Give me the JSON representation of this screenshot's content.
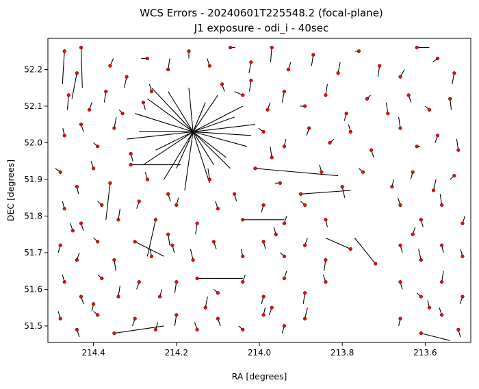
{
  "chart_data": {
    "type": "scatter",
    "title": "WCS Errors - 20240601T225548.2 (focal-plane)",
    "subtitle": "J1 exposure - odi_i - 40sec",
    "xlabel": "RA [degrees]",
    "ylabel": "DEC [degrees]",
    "xlim": [
      214.51,
      213.49
    ],
    "ylim": [
      51.455,
      52.285
    ],
    "x_inverted": true,
    "xticks": [
      214.4,
      214.2,
      214.0,
      213.8,
      213.6
    ],
    "xtick_labels": [
      "214.4",
      "214.2",
      "214.0",
      "213.8",
      "213.6"
    ],
    "yticks": [
      51.5,
      51.6,
      51.7,
      51.8,
      51.9,
      52.0,
      52.1,
      52.2
    ],
    "ytick_labels": [
      "51.5",
      "51.6",
      "51.7",
      "51.8",
      "51.9",
      "52.0",
      "52.1",
      "52.2"
    ],
    "grid": false,
    "marker_color": "#ff0000",
    "marker_edge_color": "#000000",
    "vector_color": "#000000",
    "burst_center": {
      "ra": 214.16,
      "dec": 52.03
    },
    "points": [
      {
        "ra": 214.47,
        "dec": 52.25,
        "dra": 0.005,
        "ddec": -0.09
      },
      {
        "ra": 214.44,
        "dec": 52.19,
        "dra": 0.012,
        "ddec": -0.07
      },
      {
        "ra": 214.43,
        "dec": 52.26,
        "dra": -0.003,
        "ddec": -0.11
      },
      {
        "ra": 214.36,
        "dec": 52.21,
        "dra": -0.008,
        "ddec": 0.02
      },
      {
        "ra": 214.32,
        "dec": 52.18,
        "dra": 0.006,
        "ddec": -0.03
      },
      {
        "ra": 214.27,
        "dec": 52.23,
        "dra": 0.015,
        "ddec": 0.0
      },
      {
        "ra": 214.22,
        "dec": 52.2,
        "dra": -0.004,
        "ddec": 0.03
      },
      {
        "ra": 214.17,
        "dec": 52.25,
        "dra": 0.0,
        "ddec": -0.02
      },
      {
        "ra": 214.12,
        "dec": 52.21,
        "dra": 0.006,
        "ddec": 0.02
      },
      {
        "ra": 214.07,
        "dec": 52.26,
        "dra": -0.012,
        "ddec": 0.0
      },
      {
        "ra": 214.02,
        "dec": 52.22,
        "dra": 0.005,
        "ddec": -0.03
      },
      {
        "ra": 213.97,
        "dec": 52.26,
        "dra": 0.003,
        "ddec": -0.04
      },
      {
        "ra": 213.93,
        "dec": 52.2,
        "dra": -0.006,
        "ddec": 0.02
      },
      {
        "ra": 213.87,
        "dec": 52.24,
        "dra": 0.004,
        "ddec": -0.03
      },
      {
        "ra": 213.81,
        "dec": 52.19,
        "dra": -0.005,
        "ddec": 0.03
      },
      {
        "ra": 213.76,
        "dec": 52.25,
        "dra": 0.01,
        "ddec": 0.0
      },
      {
        "ra": 213.71,
        "dec": 52.21,
        "dra": 0.004,
        "ddec": -0.03
      },
      {
        "ra": 213.66,
        "dec": 52.18,
        "dra": -0.01,
        "ddec": 0.02
      },
      {
        "ra": 213.62,
        "dec": 52.26,
        "dra": -0.03,
        "ddec": 0.0
      },
      {
        "ra": 213.57,
        "dec": 52.23,
        "dra": 0.012,
        "ddec": -0.01
      },
      {
        "ra": 213.53,
        "dec": 52.19,
        "dra": 0.005,
        "ddec": -0.03
      },
      {
        "ra": 214.46,
        "dec": 52.13,
        "dra": 0.003,
        "ddec": -0.04
      },
      {
        "ra": 214.41,
        "dec": 52.09,
        "dra": -0.006,
        "ddec": 0.02
      },
      {
        "ra": 214.37,
        "dec": 52.14,
        "dra": 0.004,
        "ddec": -0.03
      },
      {
        "ra": 214.33,
        "dec": 52.08,
        "dra": 0.008,
        "ddec": 0.01
      },
      {
        "ra": 214.28,
        "dec": 52.11,
        "dra": -0.005,
        "ddec": -0.02
      },
      {
        "ra": 214.04,
        "dec": 52.13,
        "dra": 0.02,
        "ddec": 0.01
      },
      {
        "ra": 213.98,
        "dec": 52.09,
        "dra": -0.006,
        "ddec": 0.02
      },
      {
        "ra": 213.94,
        "dec": 52.14,
        "dra": 0.005,
        "ddec": -0.03
      },
      {
        "ra": 213.89,
        "dec": 52.1,
        "dra": 0.012,
        "ddec": 0.0
      },
      {
        "ra": 213.84,
        "dec": 52.13,
        "dra": -0.004,
        "ddec": 0.03
      },
      {
        "ra": 213.79,
        "dec": 52.08,
        "dra": 0.005,
        "ddec": -0.02
      },
      {
        "ra": 213.74,
        "dec": 52.12,
        "dra": -0.008,
        "ddec": 0.01
      },
      {
        "ra": 213.69,
        "dec": 52.08,
        "dra": 0.004,
        "ddec": 0.03
      },
      {
        "ra": 213.64,
        "dec": 52.13,
        "dra": -0.006,
        "ddec": -0.02
      },
      {
        "ra": 213.59,
        "dec": 52.09,
        "dra": 0.01,
        "ddec": 0.01
      },
      {
        "ra": 213.54,
        "dec": 52.12,
        "dra": -0.003,
        "ddec": -0.03
      },
      {
        "ra": 214.47,
        "dec": 52.02,
        "dra": 0.004,
        "ddec": 0.02
      },
      {
        "ra": 214.43,
        "dec": 52.05,
        "dra": -0.006,
        "ddec": -0.02
      },
      {
        "ra": 214.39,
        "dec": 51.99,
        "dra": 0.01,
        "ddec": 0.01
      },
      {
        "ra": 214.35,
        "dec": 52.04,
        "dra": -0.005,
        "ddec": 0.03
      },
      {
        "ra": 213.99,
        "dec": 52.03,
        "dra": 0.012,
        "ddec": 0.01
      },
      {
        "ra": 213.94,
        "dec": 51.99,
        "dra": -0.004,
        "ddec": 0.02
      },
      {
        "ra": 213.88,
        "dec": 52.04,
        "dra": 0.006,
        "ddec": -0.02
      },
      {
        "ra": 213.83,
        "dec": 52.0,
        "dra": -0.01,
        "ddec": 0.01
      },
      {
        "ra": 213.78,
        "dec": 52.03,
        "dra": 0.005,
        "ddec": 0.02
      },
      {
        "ra": 213.73,
        "dec": 51.98,
        "dra": -0.006,
        "ddec": -0.02
      },
      {
        "ra": 213.66,
        "dec": 52.04,
        "dra": 0.004,
        "ddec": 0.03
      },
      {
        "ra": 213.62,
        "dec": 51.99,
        "dra": -0.008,
        "ddec": 0.0
      },
      {
        "ra": 213.57,
        "dec": 52.02,
        "dra": 0.006,
        "ddec": -0.02
      },
      {
        "ra": 213.52,
        "dec": 51.98,
        "dra": 0.004,
        "ddec": 0.03
      },
      {
        "ra": 214.48,
        "dec": 51.92,
        "dra": 0.012,
        "ddec": 0.01
      },
      {
        "ra": 214.44,
        "dec": 51.88,
        "dra": -0.004,
        "ddec": -0.02
      },
      {
        "ra": 214.4,
        "dec": 51.93,
        "dra": 0.006,
        "ddec": 0.02
      },
      {
        "ra": 214.36,
        "dec": 51.89,
        "dra": 0.01,
        "ddec": -0.1
      },
      {
        "ra": 214.31,
        "dec": 51.94,
        "dra": -0.12,
        "ddec": 0.0
      },
      {
        "ra": 214.27,
        "dec": 51.9,
        "dra": 0.005,
        "ddec": 0.02
      },
      {
        "ra": 214.22,
        "dec": 51.86,
        "dra": -0.006,
        "ddec": -0.02
      },
      {
        "ra": 214.12,
        "dec": 51.9,
        "dra": 0.004,
        "ddec": 0.03
      },
      {
        "ra": 214.06,
        "dec": 51.86,
        "dra": -0.005,
        "ddec": -0.02
      },
      {
        "ra": 214.01,
        "dec": 51.93,
        "dra": -0.2,
        "ddec": -0.02
      },
      {
        "ra": 213.95,
        "dec": 51.89,
        "dra": 0.012,
        "ddec": 0.0
      },
      {
        "ra": 213.9,
        "dec": 51.86,
        "dra": -0.12,
        "ddec": 0.01
      },
      {
        "ra": 213.85,
        "dec": 51.92,
        "dra": 0.005,
        "ddec": 0.02
      },
      {
        "ra": 213.8,
        "dec": 51.88,
        "dra": -0.006,
        "ddec": -0.03
      },
      {
        "ra": 213.75,
        "dec": 51.92,
        "dra": 0.01,
        "ddec": 0.01
      },
      {
        "ra": 213.68,
        "dec": 51.88,
        "dra": -0.004,
        "ddec": 0.02
      },
      {
        "ra": 213.63,
        "dec": 51.92,
        "dra": 0.005,
        "ddec": -0.02
      },
      {
        "ra": 213.58,
        "dec": 51.87,
        "dra": -0.006,
        "ddec": 0.03
      },
      {
        "ra": 213.53,
        "dec": 51.91,
        "dra": 0.01,
        "ddec": -0.01
      },
      {
        "ra": 214.47,
        "dec": 51.82,
        "dra": 0.005,
        "ddec": 0.02
      },
      {
        "ra": 214.43,
        "dec": 51.78,
        "dra": -0.006,
        "ddec": -0.02
      },
      {
        "ra": 214.38,
        "dec": 51.83,
        "dra": 0.01,
        "ddec": 0.01
      },
      {
        "ra": 214.34,
        "dec": 51.79,
        "dra": -0.004,
        "ddec": 0.03
      },
      {
        "ra": 214.29,
        "dec": 51.84,
        "dra": 0.006,
        "ddec": -0.02
      },
      {
        "ra": 214.25,
        "dec": 51.79,
        "dra": 0.02,
        "ddec": -0.1
      },
      {
        "ra": 214.2,
        "dec": 51.83,
        "dra": -0.005,
        "ddec": 0.02
      },
      {
        "ra": 214.15,
        "dec": 51.78,
        "dra": 0.004,
        "ddec": -0.03
      },
      {
        "ra": 214.1,
        "dec": 51.82,
        "dra": 0.006,
        "ddec": 0.02
      },
      {
        "ra": 214.04,
        "dec": 51.79,
        "dra": -0.1,
        "ddec": 0.0
      },
      {
        "ra": 213.99,
        "dec": 51.83,
        "dra": 0.005,
        "ddec": -0.02
      },
      {
        "ra": 213.94,
        "dec": 51.78,
        "dra": -0.006,
        "ddec": 0.02
      },
      {
        "ra": 213.89,
        "dec": 51.83,
        "dra": 0.01,
        "ddec": 0.01
      },
      {
        "ra": 213.84,
        "dec": 51.79,
        "dra": -0.004,
        "ddec": -0.02
      },
      {
        "ra": 213.66,
        "dec": 51.83,
        "dra": 0.006,
        "ddec": 0.02
      },
      {
        "ra": 213.61,
        "dec": 51.79,
        "dra": -0.005,
        "ddec": -0.02
      },
      {
        "ra": 213.56,
        "dec": 51.83,
        "dra": 0.004,
        "ddec": 0.03
      },
      {
        "ra": 213.51,
        "dec": 51.78,
        "dra": -0.006,
        "ddec": 0.02
      },
      {
        "ra": 214.48,
        "dec": 51.72,
        "dra": 0.005,
        "ddec": -0.02
      },
      {
        "ra": 214.44,
        "dec": 51.68,
        "dra": -0.006,
        "ddec": 0.02
      },
      {
        "ra": 214.39,
        "dec": 51.73,
        "dra": 0.01,
        "ddec": 0.01
      },
      {
        "ra": 214.35,
        "dec": 51.68,
        "dra": -0.004,
        "ddec": -0.03
      },
      {
        "ra": 214.3,
        "dec": 51.73,
        "dra": -0.07,
        "ddec": -0.04
      },
      {
        "ra": 214.26,
        "dec": 51.69,
        "dra": 0.004,
        "ddec": 0.02
      },
      {
        "ra": 214.21,
        "dec": 51.72,
        "dra": -0.005,
        "ddec": -0.02
      },
      {
        "ra": 214.16,
        "dec": 51.68,
        "dra": 0.006,
        "ddec": 0.03
      },
      {
        "ra": 214.11,
        "dec": 51.73,
        "dra": -0.006,
        "ddec": -0.02
      },
      {
        "ra": 214.04,
        "dec": 51.69,
        "dra": 0.004,
        "ddec": 0.02
      },
      {
        "ra": 213.99,
        "dec": 51.73,
        "dra": -0.005,
        "ddec": -0.02
      },
      {
        "ra": 213.94,
        "dec": 51.69,
        "dra": 0.01,
        "ddec": 0.01
      },
      {
        "ra": 213.89,
        "dec": 51.72,
        "dra": -0.006,
        "ddec": 0.02
      },
      {
        "ra": 213.84,
        "dec": 51.68,
        "dra": 0.004,
        "ddec": -0.03
      },
      {
        "ra": 213.78,
        "dec": 51.71,
        "dra": 0.06,
        "ddec": 0.03
      },
      {
        "ra": 213.72,
        "dec": 51.67,
        "dra": 0.05,
        "ddec": 0.07
      },
      {
        "ra": 213.66,
        "dec": 51.72,
        "dra": -0.005,
        "ddec": -0.02
      },
      {
        "ra": 213.61,
        "dec": 51.68,
        "dra": 0.006,
        "ddec": 0.03
      },
      {
        "ra": 213.56,
        "dec": 51.72,
        "dra": -0.004,
        "ddec": -0.02
      },
      {
        "ra": 213.51,
        "dec": 51.69,
        "dra": 0.005,
        "ddec": 0.02
      },
      {
        "ra": 214.47,
        "dec": 51.62,
        "dra": 0.005,
        "ddec": 0.02
      },
      {
        "ra": 214.43,
        "dec": 51.58,
        "dra": -0.006,
        "ddec": -0.02
      },
      {
        "ra": 214.38,
        "dec": 51.63,
        "dra": 0.01,
        "ddec": 0.01
      },
      {
        "ra": 214.34,
        "dec": 51.58,
        "dra": -0.004,
        "ddec": 0.03
      },
      {
        "ra": 214.29,
        "dec": 51.62,
        "dra": 0.006,
        "ddec": -0.02
      },
      {
        "ra": 214.24,
        "dec": 51.58,
        "dra": -0.005,
        "ddec": 0.02
      },
      {
        "ra": 214.2,
        "dec": 51.62,
        "dra": 0.004,
        "ddec": -0.03
      },
      {
        "ra": 214.15,
        "dec": 51.63,
        "dra": -0.11,
        "ddec": 0.0
      },
      {
        "ra": 214.1,
        "dec": 51.59,
        "dra": 0.01,
        "ddec": 0.01
      },
      {
        "ra": 214.04,
        "dec": 51.62,
        "dra": -0.006,
        "ddec": 0.02
      },
      {
        "ra": 213.99,
        "dec": 51.58,
        "dra": 0.005,
        "ddec": -0.02
      },
      {
        "ra": 213.94,
        "dec": 51.63,
        "dra": -0.006,
        "ddec": 0.02
      },
      {
        "ra": 213.89,
        "dec": 51.59,
        "dra": 0.004,
        "ddec": -0.03
      },
      {
        "ra": 213.84,
        "dec": 51.62,
        "dra": 0.006,
        "ddec": 0.02
      },
      {
        "ra": 213.66,
        "dec": 51.62,
        "dra": -0.005,
        "ddec": -0.02
      },
      {
        "ra": 213.61,
        "dec": 51.58,
        "dra": 0.01,
        "ddec": 0.01
      },
      {
        "ra": 213.56,
        "dec": 51.62,
        "dra": -0.004,
        "ddec": 0.03
      },
      {
        "ra": 213.51,
        "dec": 51.58,
        "dra": 0.006,
        "ddec": -0.02
      },
      {
        "ra": 214.48,
        "dec": 51.52,
        "dra": 0.005,
        "ddec": 0.02
      },
      {
        "ra": 214.44,
        "dec": 51.49,
        "dra": -0.006,
        "ddec": -0.02
      },
      {
        "ra": 214.39,
        "dec": 51.53,
        "dra": 0.01,
        "ddec": 0.01
      },
      {
        "ra": 214.35,
        "dec": 51.48,
        "dra": -0.12,
        "ddec": 0.02
      },
      {
        "ra": 214.3,
        "dec": 51.52,
        "dra": 0.006,
        "ddec": -0.02
      },
      {
        "ra": 214.25,
        "dec": 51.49,
        "dra": -0.005,
        "ddec": 0.02
      },
      {
        "ra": 214.2,
        "dec": 51.53,
        "dra": 0.004,
        "ddec": -0.03
      },
      {
        "ra": 214.15,
        "dec": 51.49,
        "dra": 0.006,
        "ddec": 0.02
      },
      {
        "ra": 214.1,
        "dec": 51.52,
        "dra": -0.006,
        "ddec": -0.02
      },
      {
        "ra": 214.04,
        "dec": 51.49,
        "dra": 0.01,
        "ddec": 0.01
      },
      {
        "ra": 213.99,
        "dec": 51.53,
        "dra": -0.004,
        "ddec": 0.02
      },
      {
        "ra": 213.94,
        "dec": 51.5,
        "dra": 0.005,
        "ddec": -0.02
      },
      {
        "ra": 213.89,
        "dec": 51.52,
        "dra": -0.006,
        "ddec": 0.03
      },
      {
        "ra": 213.66,
        "dec": 51.52,
        "dra": 0.004,
        "ddec": -0.02
      },
      {
        "ra": 213.61,
        "dec": 51.48,
        "dra": -0.07,
        "ddec": -0.02
      },
      {
        "ra": 213.56,
        "dec": 51.53,
        "dra": 0.006,
        "ddec": 0.02
      },
      {
        "ra": 213.52,
        "dec": 51.49,
        "dra": -0.005,
        "ddec": -0.02
      },
      {
        "ra": 214.02,
        "dec": 52.17,
        "dra": 0.004,
        "ddec": -0.03
      },
      {
        "ra": 214.26,
        "dec": 52.14,
        "dra": 0.005,
        "ddec": 0.02
      },
      {
        "ra": 214.09,
        "dec": 52.16,
        "dra": -0.006,
        "ddec": -0.02
      },
      {
        "ra": 213.97,
        "dec": 51.96,
        "dra": 0.004,
        "ddec": 0.03
      },
      {
        "ra": 214.31,
        "dec": 51.97,
        "dra": -0.005,
        "ddec": -0.02
      },
      {
        "ra": 214.45,
        "dec": 51.76,
        "dra": 0.006,
        "ddec": 0.02
      },
      {
        "ra": 214.22,
        "dec": 51.75,
        "dra": -0.004,
        "ddec": -0.03
      },
      {
        "ra": 213.96,
        "dec": 51.75,
        "dra": 0.005,
        "ddec": 0.02
      },
      {
        "ra": 213.63,
        "dec": 51.75,
        "dra": -0.006,
        "ddec": 0.02
      },
      {
        "ra": 214.4,
        "dec": 51.56,
        "dra": 0.004,
        "ddec": -0.02
      },
      {
        "ra": 214.13,
        "dec": 51.55,
        "dra": -0.005,
        "ddec": 0.03
      },
      {
        "ra": 213.97,
        "dec": 51.55,
        "dra": 0.006,
        "ddec": -0.02
      },
      {
        "ra": 213.59,
        "dec": 51.55,
        "dra": 0.004,
        "ddec": 0.02
      }
    ],
    "burst_vectors": [
      {
        "dra": 0.1,
        "ddec": 0.12
      },
      {
        "dra": 0.14,
        "ddec": 0.05
      },
      {
        "dra": 0.16,
        "ddec": -0.02
      },
      {
        "dra": 0.12,
        "ddec": -0.09
      },
      {
        "dra": 0.07,
        "ddec": -0.13
      },
      {
        "dra": 0.02,
        "ddec": -0.16
      },
      {
        "dra": -0.04,
        "ddec": -0.14
      },
      {
        "dra": -0.09,
        "ddec": -0.1
      },
      {
        "dra": -0.13,
        "ddec": -0.04
      },
      {
        "dra": -0.15,
        "ddec": 0.02
      },
      {
        "dra": -0.12,
        "ddec": 0.07
      },
      {
        "dra": -0.06,
        "ddec": 0.1
      },
      {
        "dra": 0.01,
        "ddec": 0.12
      },
      {
        "dra": 0.06,
        "ddec": 0.11
      },
      {
        "dra": 0.11,
        "ddec": 0.09
      },
      {
        "dra": 0.09,
        "ddec": -0.05
      },
      {
        "dra": -0.08,
        "ddec": -0.07
      },
      {
        "dra": -0.1,
        "ddec": 0.04
      },
      {
        "dra": 0.05,
        "ddec": 0.06
      },
      {
        "dra": -0.03,
        "ddec": 0.08
      },
      {
        "dra": 0.13,
        "ddec": 0.0
      },
      {
        "dra": -0.14,
        "ddec": -0.01
      },
      {
        "dra": 0.04,
        "ddec": -0.1
      },
      {
        "dra": -0.05,
        "ddec": -0.09
      }
    ]
  }
}
